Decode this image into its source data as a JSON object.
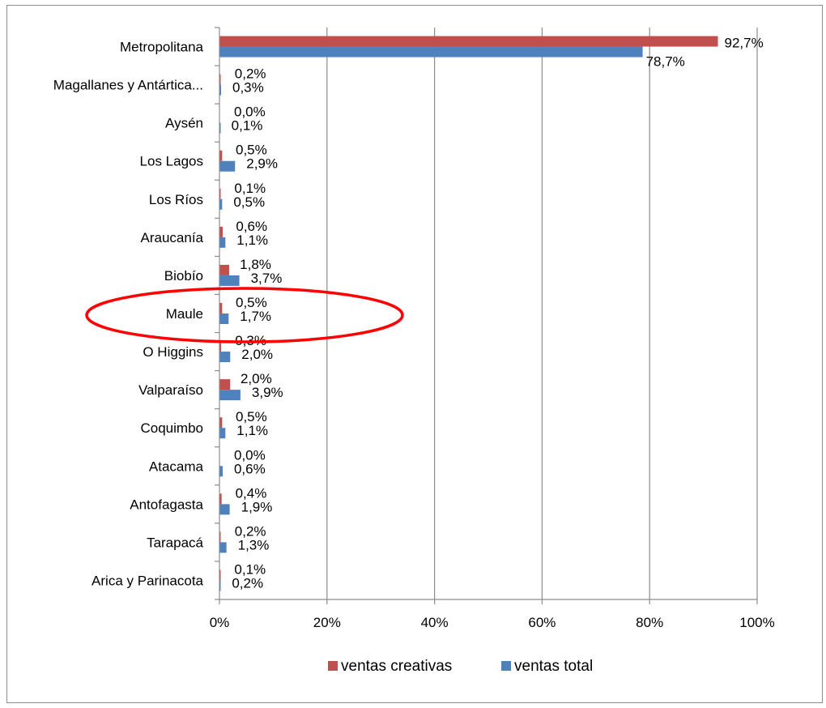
{
  "chart_data": {
    "type": "bar",
    "orientation": "horizontal",
    "categories": [
      "Metropolitana",
      "Magallanes y Antártica...",
      "Aysén",
      "Los Lagos",
      "Los Ríos",
      "Araucanía",
      "Biobío",
      "Maule",
      "O Higgins",
      "Valparaíso",
      "Coquimbo",
      "Atacama",
      "Antofagasta",
      "Tarapacá",
      "Arica y Parinacota"
    ],
    "series": [
      {
        "name": "ventas creativas",
        "color": "#c0504d",
        "values": [
          92.7,
          0.2,
          0.0,
          0.5,
          0.1,
          0.6,
          1.8,
          0.5,
          0.3,
          2.0,
          0.5,
          0.0,
          0.4,
          0.2,
          0.1
        ],
        "labels": [
          "92,7%",
          "0,2%",
          "0,0%",
          "0,5%",
          "0,1%",
          "0,6%",
          "1,8%",
          "0,5%",
          "0,3%",
          "2,0%",
          "0,5%",
          "0,0%",
          "0,4%",
          "0,2%",
          "0,1%"
        ]
      },
      {
        "name": "ventas total",
        "color": "#4f81bd",
        "values": [
          78.7,
          0.3,
          0.1,
          2.9,
          0.5,
          1.1,
          3.7,
          1.7,
          2.0,
          3.9,
          1.1,
          0.6,
          1.9,
          1.3,
          0.2
        ],
        "labels": [
          "78,7%",
          "0,3%",
          "0,1%",
          "2,9%",
          "0,5%",
          "1,1%",
          "3,7%",
          "1,7%",
          "2,0%",
          "3,9%",
          "1,1%",
          "0,6%",
          "1,9%",
          "1,3%",
          "0,2%"
        ]
      }
    ],
    "xlim": [
      0,
      100
    ],
    "xticks": [
      "0%",
      "20%",
      "40%",
      "60%",
      "80%",
      "100%"
    ],
    "grid": "vertical",
    "legend": "bottom",
    "annotation": {
      "type": "ellipse",
      "target": "Maule",
      "color": "#ff0000"
    }
  }
}
